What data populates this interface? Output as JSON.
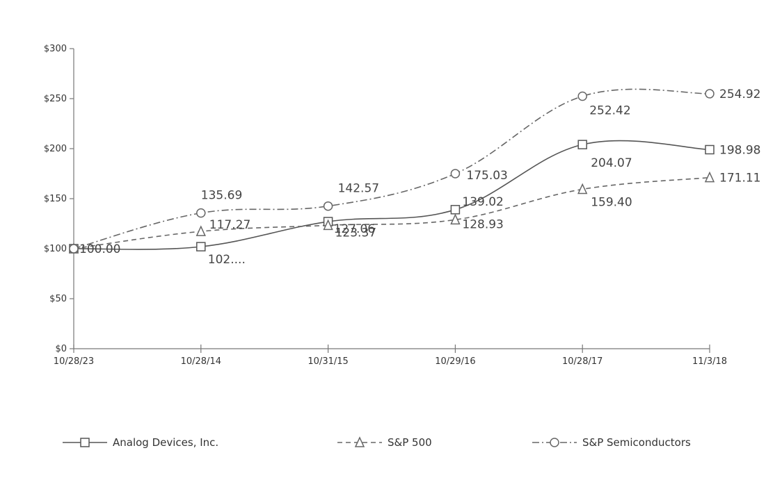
{
  "chart_data": {
    "type": "line",
    "categories": [
      "10/28/23",
      "10/28/14",
      "10/31/15",
      "10/29/16",
      "10/28/17",
      "11/3/18"
    ],
    "ylim": [
      0,
      300
    ],
    "yticks": [
      "$0",
      "$50",
      "$100",
      "$150",
      "$200",
      "$250",
      "$300"
    ],
    "ytick_values": [
      0,
      50,
      100,
      150,
      200,
      250,
      300
    ],
    "grid": false,
    "legend_placement": "bottom",
    "series": [
      {
        "name": "Analog Devices, Inc.",
        "values": [
          100.0,
          102.0,
          127.06,
          139.02,
          204.07,
          198.98
        ],
        "labels": [
          "100.00",
          "102....",
          "127.06",
          "139.02",
          "204.07",
          "198.98"
        ],
        "marker": "square",
        "dash": "solid",
        "color": "#555555"
      },
      {
        "name": "S&P 500",
        "values": [
          100.0,
          117.27,
          123.37,
          128.93,
          159.4,
          171.11
        ],
        "labels": [
          "",
          "117.27",
          "123.37",
          "128.93",
          "159.40",
          "171.11"
        ],
        "marker": "triangle",
        "dash": "dashed",
        "color": "#666666"
      },
      {
        "name": "S&P Semiconductors",
        "values": [
          100.0,
          135.69,
          142.57,
          175.03,
          252.42,
          254.92
        ],
        "labels": [
          "",
          "135.69",
          "142.57",
          "175.03",
          "252.42",
          "254.92"
        ],
        "marker": "circle",
        "dash": "dashdot",
        "color": "#666666"
      }
    ]
  }
}
